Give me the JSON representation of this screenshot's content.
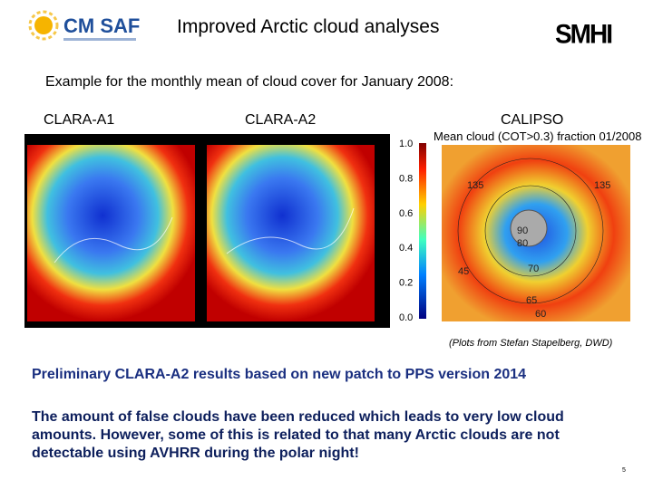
{
  "header": {
    "logo": "CM SAF",
    "title": "Improved Arctic cloud analyses",
    "right_logo": "SMHI"
  },
  "subtitle": "Example for the monthly mean of cloud cover for January 2008:",
  "panels": [
    {
      "label": "CLARA-A1"
    },
    {
      "label": "CLARA-A2"
    },
    {
      "label": "CALIPSO",
      "plot_title": "Mean cloud (COT>0.3) fraction 01/2008",
      "map_labels": [
        "135",
        "135",
        "90",
        "80",
        "45",
        "70",
        "65",
        "60"
      ]
    }
  ],
  "colorbar": {
    "ticks": [
      "1.0",
      "0.8",
      "0.6",
      "0.4",
      "0.2",
      "0.0"
    ]
  },
  "credit": "(Plots from Stefan Stapelberg, DWD)",
  "heading": "Preliminary CLARA-A2 results based on new patch to PPS version 2014",
  "paragraph": {
    "lines": [
      "The amount of false clouds have been reduced which leads to very low cloud",
      "amounts. However, some of this is related to that many Arctic clouds are not",
      "detectable using AVHRR during the polar night!"
    ]
  },
  "page_number": "5"
}
